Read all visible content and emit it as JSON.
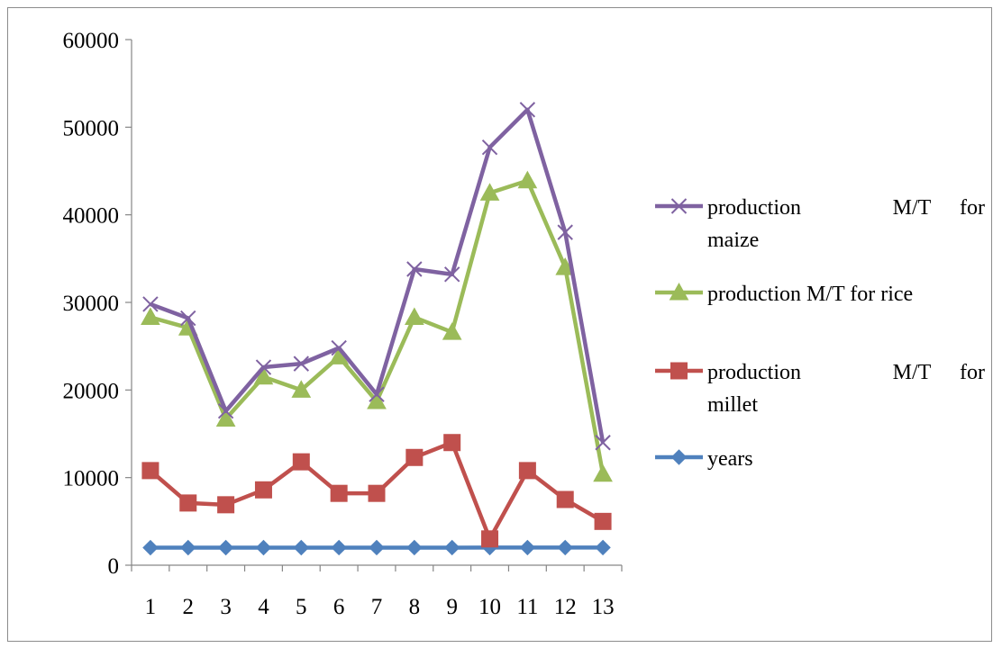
{
  "chart_data": {
    "type": "line",
    "categories": [
      "1",
      "2",
      "3",
      "4",
      "5",
      "6",
      "7",
      "8",
      "9",
      "10",
      "11",
      "12",
      "13"
    ],
    "ylim": [
      0,
      60000
    ],
    "yticks": [
      "0",
      "10000",
      "20000",
      "30000",
      "40000",
      "50000",
      "60000"
    ],
    "grid": false,
    "legend_position": "right",
    "series": [
      {
        "name": "production M/T for maize",
        "legend_lines": [
          "production M/T for",
          "maize"
        ],
        "color": "#7f62a1",
        "marker": "x",
        "values": [
          29800,
          28200,
          17600,
          22600,
          23000,
          24800,
          19500,
          33800,
          33200,
          47700,
          52000,
          38000,
          14000
        ]
      },
      {
        "name": "production M/T for rice",
        "legend_lines": [
          "production M/T for rice"
        ],
        "color": "#9bbb59",
        "marker": "triangle",
        "values": [
          28300,
          27100,
          16700,
          21500,
          20000,
          23800,
          18700,
          28300,
          26600,
          42500,
          43900,
          34000,
          10400
        ]
      },
      {
        "name": "production M/T for millet",
        "legend_lines": [
          "production M/T for",
          "millet"
        ],
        "color": "#c0504d",
        "marker": "square",
        "values": [
          10800,
          7100,
          6900,
          8600,
          11800,
          8200,
          8200,
          12300,
          14000,
          3000,
          10800,
          7500,
          5000
        ]
      },
      {
        "name": "years",
        "legend_lines": [
          "years"
        ],
        "color": "#4f81bd",
        "marker": "diamond",
        "values": [
          2001,
          2002,
          2003,
          2004,
          2005,
          2006,
          2007,
          2008,
          2009,
          2010,
          2011,
          2012,
          2013
        ]
      }
    ]
  }
}
